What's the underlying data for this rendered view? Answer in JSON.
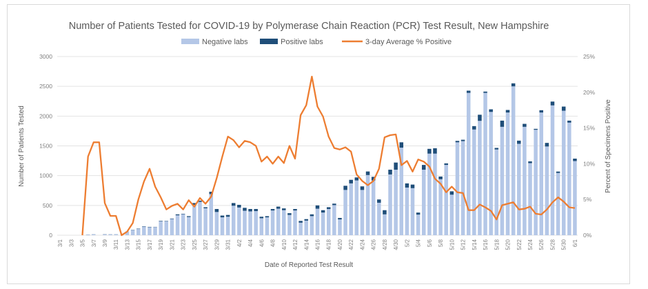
{
  "chart_data": {
    "type": "bar",
    "title": "Number of Patients Tested for COVID-19 by Polymerase Chain Reaction (PCR) Test Result, New Hampshire",
    "xlabel": "Date of Reported Test Result",
    "ylabel": "Number of Patients Tested",
    "y2label": "Percent of Specimens Positive",
    "ylim": [
      0,
      3000
    ],
    "y2lim": [
      0,
      25
    ],
    "yticks": [
      "0",
      "500",
      "1000",
      "1500",
      "2000",
      "2500",
      "3000"
    ],
    "y2ticks": [
      "0%",
      "5%",
      "10%",
      "15%",
      "20%",
      "25%"
    ],
    "grid": true,
    "legend_position": "top",
    "legend": [
      "Negative labs",
      "Positive labs",
      "3-day Average % Positive"
    ],
    "colors": {
      "negative": "#b4c7e7",
      "positive": "#1f4e79",
      "line": "#ed7d31"
    },
    "start_date": "3/1",
    "dates": [
      "3/1",
      "3/2",
      "3/3",
      "3/4",
      "3/5",
      "3/6",
      "3/7",
      "3/8",
      "3/9",
      "3/10",
      "3/11",
      "3/12",
      "3/13",
      "3/14",
      "3/15",
      "3/16",
      "3/17",
      "3/18",
      "3/19",
      "3/20",
      "3/21",
      "3/22",
      "3/23",
      "3/24",
      "3/25",
      "3/26",
      "3/27",
      "3/28",
      "3/29",
      "3/30",
      "3/31",
      "4/1",
      "4/2",
      "4/3",
      "4/4",
      "4/5",
      "4/6",
      "4/7",
      "4/8",
      "4/9",
      "4/10",
      "4/11",
      "4/12",
      "4/13",
      "4/14",
      "4/15",
      "4/16",
      "4/17",
      "4/18",
      "4/19",
      "4/20",
      "4/21",
      "4/22",
      "4/23",
      "4/24",
      "4/25",
      "4/26",
      "4/27",
      "4/28",
      "4/29",
      "4/30",
      "5/1",
      "5/2",
      "5/3",
      "5/4",
      "5/5",
      "5/6",
      "5/7",
      "5/8",
      "5/9",
      "5/10",
      "5/11",
      "5/12",
      "5/13",
      "5/14",
      "5/15",
      "5/16",
      "5/17",
      "5/18",
      "5/19",
      "5/20",
      "5/21",
      "5/22",
      "5/23",
      "5/24",
      "5/25",
      "5/26",
      "5/27",
      "5/28",
      "5/29",
      "5/30",
      "5/31",
      "6/1"
    ],
    "series": [
      {
        "name": "Negative labs",
        "values": [
          0,
          0,
          0,
          0,
          0,
          8,
          13,
          0,
          12,
          13,
          13,
          0,
          58,
          86,
          104,
          144,
          134,
          136,
          232,
          234,
          272,
          334,
          352,
          305,
          510,
          560,
          452,
          690,
          390,
          300,
          310,
          495,
          465,
          410,
          400,
          405,
          285,
          300,
          415,
          445,
          420,
          340,
          415,
          210,
          245,
          320,
          445,
          380,
          440,
          505,
          265,
          760,
          870,
          920,
          760,
          1010,
          920,
          545,
          350,
          1020,
          1100,
          1470,
          800,
          790,
          345,
          1100,
          1370,
          1370,
          940,
          1180,
          680,
          1560,
          1580,
          2390,
          1775,
          1920,
          2390,
          2070,
          1440,
          1820,
          2060,
          2500,
          1535,
          1820,
          1210,
          1770,
          2060,
          1490,
          2180,
          1045,
          2090,
          1890,
          1245
        ]
      },
      {
        "name": "Positive labs",
        "values": [
          0,
          0,
          0,
          0,
          0,
          2,
          2,
          0,
          3,
          2,
          2,
          0,
          2,
          4,
          6,
          6,
          6,
          4,
          8,
          6,
          8,
          16,
          8,
          15,
          30,
          20,
          18,
          40,
          50,
          30,
          30,
          45,
          45,
          50,
          40,
          35,
          25,
          20,
          25,
          35,
          30,
          30,
          25,
          30,
          25,
          30,
          55,
          40,
          30,
          25,
          25,
          70,
          60,
          50,
          60,
          60,
          60,
          55,
          70,
          80,
          120,
          90,
          70,
          60,
          35,
          80,
          80,
          90,
          45,
          26,
          57,
          24,
          23,
          37,
          57,
          103,
          22,
          44,
          26,
          104,
          43,
          50,
          53,
          50,
          30,
          16,
          39,
          60,
          64,
          24,
          70,
          34,
          41
        ]
      }
    ],
    "line": {
      "name": "3-day Average % Positive",
      "axis": "right",
      "values": [
        null,
        null,
        null,
        null,
        0,
        11,
        13,
        13,
        4.5,
        2.7,
        2.7,
        0,
        0.5,
        1.7,
        5,
        7.5,
        9.3,
        6.8,
        5.3,
        3.6,
        4.1,
        4.4,
        3.6,
        4.9,
        4,
        5.2,
        4.4,
        5.4,
        8,
        11,
        13.8,
        13.3,
        12.3,
        13.2,
        13,
        12.5,
        10.3,
        11,
        10,
        11,
        10.1,
        12.5,
        10.7,
        16.8,
        18.2,
        22.2,
        18,
        16.6,
        13.8,
        12.2,
        12,
        12.3,
        11.7,
        8.5,
        7.6,
        7,
        7.6,
        9.3,
        13.7,
        14,
        14.1,
        9.8,
        10.4,
        8.9,
        10.6,
        10.3,
        9.6,
        7.9,
        7.2,
        6,
        6.8,
        6,
        5.9,
        3.5,
        3.5,
        4.3,
        3.9,
        3.4,
        2.2,
        4.2,
        4.4,
        4.6,
        3.6,
        3.7,
        4,
        3,
        2.9,
        3.6,
        4.6,
        5.3,
        4.7,
        3.9,
        3.8
      ]
    }
  }
}
